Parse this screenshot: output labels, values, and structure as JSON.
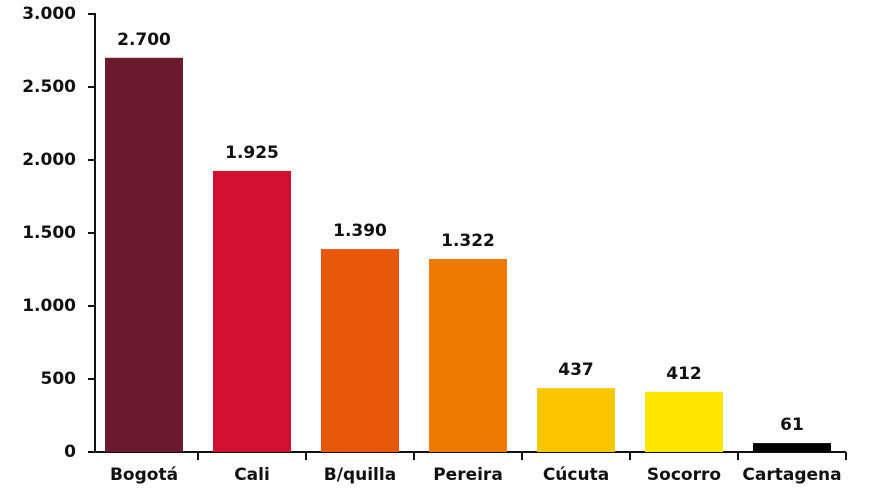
{
  "chart_data": {
    "type": "bar",
    "categories": [
      "Bogotá",
      "Cali",
      "B/quilla",
      "Pereira",
      "Cúcuta",
      "Socorro",
      "Cartagena"
    ],
    "values": [
      2700,
      1925,
      1390,
      1322,
      437,
      412,
      61
    ],
    "value_labels": [
      "2.700",
      "1.925",
      "1.390",
      "1.322",
      "437",
      "412",
      "61"
    ],
    "colors": [
      "#6b1a2e",
      "#d10f30",
      "#e8560a",
      "#ef7a00",
      "#fdc400",
      "#ffe600",
      "#000000"
    ],
    "ylim": [
      0,
      3000
    ],
    "yticks": [
      0,
      500,
      {
        "value": 1000,
        "label": "1.000"
      },
      {
        "value": 1500,
        "label": "1.500"
      },
      {
        "value": 2000,
        "label": "2.000"
      },
      {
        "value": 2500,
        "label": "2.500"
      },
      {
        "value": 3000,
        "label": "3.000"
      }
    ],
    "grid": false
  }
}
